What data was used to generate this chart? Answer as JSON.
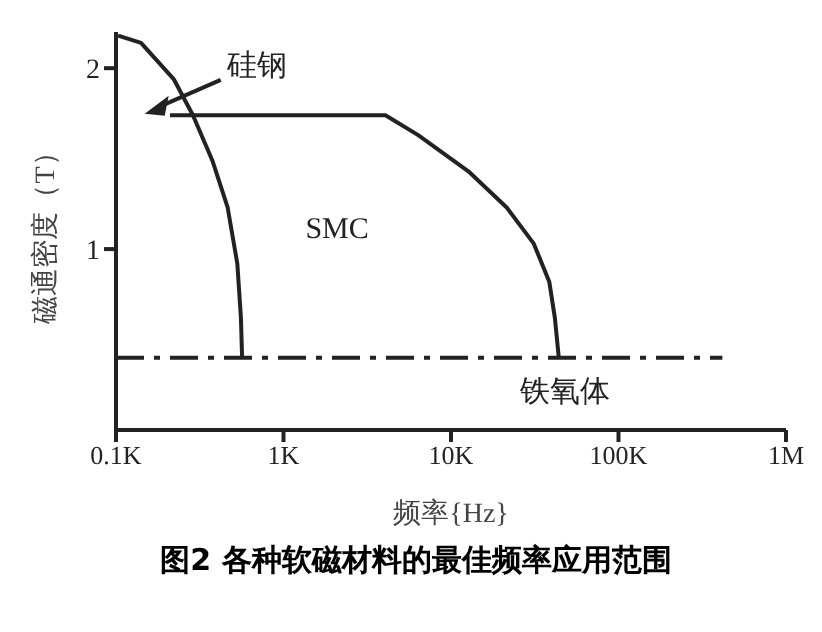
{
  "chart_data": {
    "type": "line",
    "title": "图2 各种软磁材料的最佳频率应用范围",
    "xlabel": "频率{Hz}",
    "ylabel": "磁通密度（T）",
    "log": "x",
    "xlim": [
      100,
      1000000
    ],
    "xticks": [
      {
        "value": 100,
        "label": "0.1K"
      },
      {
        "value": 1000,
        "label": "1K"
      },
      {
        "value": 10000,
        "label": "10K"
      },
      {
        "value": 100000,
        "label": "100K"
      },
      {
        "value": 1000000,
        "label": "1M"
      }
    ],
    "ylim": [
      0,
      2.2
    ],
    "yticks": [
      1,
      2
    ],
    "series": [
      {
        "color": "#222222",
        "line_style": "solid",
        "x": [
          103,
          141,
          221,
          288,
          376,
          464,
          530,
          557,
          566
        ],
        "values": [
          2.18,
          2.14,
          1.94,
          1.74,
          1.49,
          1.23,
          0.92,
          0.62,
          0.4
        ]
      },
      {
        "color": "#222222",
        "line_style": "solid",
        "x": [
          210,
          4060,
          6370,
          12700,
          21500,
          31200,
          38600,
          41700,
          44000
        ],
        "values": [
          1.74,
          1.74,
          1.63,
          1.43,
          1.23,
          1.03,
          0.82,
          0.62,
          0.4
        ]
      },
      {
        "color": "#222222",
        "line_style": "dashed",
        "x": [
          100,
          417000
        ],
        "values": [
          0.4,
          0.4
        ]
      }
    ],
    "annotations": [
      "硅钢",
      "SMC",
      "铁氧体"
    ]
  }
}
